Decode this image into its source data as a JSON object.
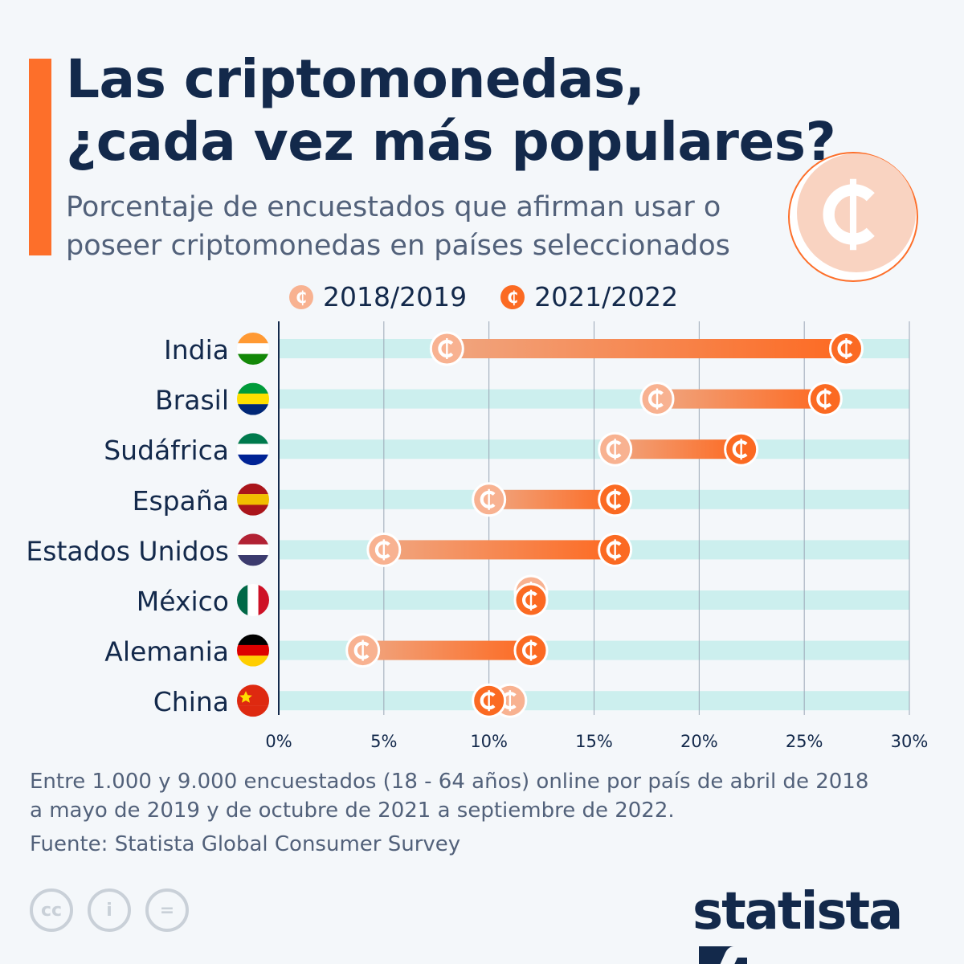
{
  "header": {
    "title_line1": "Las criptomonedas,",
    "title_line2": "¿cada vez más populares?",
    "subtitle_line1": "Porcentaje de encuestados que afirman usar o",
    "subtitle_line2": "poseer criptomonedas en países seleccionados"
  },
  "chart_data": {
    "type": "dumbbell",
    "categories": [
      "India",
      "Brasil",
      "Sudáfrica",
      "España",
      "Estados Unidos",
      "México",
      "Alemania",
      "China"
    ],
    "series": [
      {
        "name": "2018/2019",
        "color": "#f8b291",
        "values": [
          8,
          18,
          16,
          10,
          5,
          12,
          4,
          11
        ]
      },
      {
        "name": "2021/2022",
        "color": "#fb6a22",
        "values": [
          27,
          26,
          22,
          16,
          16,
          12,
          12,
          10
        ]
      }
    ],
    "xlim": [
      0,
      30
    ],
    "xticks": [
      "0%",
      "5%",
      "10%",
      "15%",
      "20%",
      "25%",
      "30%"
    ],
    "grid": true,
    "legend": "top"
  },
  "footer": {
    "note_line1": "Entre 1.000 y 9.000 encuestados (18 - 64 años) online por país de abril de 2018",
    "note_line2": "a mayo de 2019 y de octubre de 2021 a septiembre de 2022.",
    "source": "Fuente: Statista Global Consumer Survey",
    "logo": "statista",
    "coin_symbol": "₵"
  },
  "colors": {
    "accent": "#fd6f2a",
    "navy": "#13294b",
    "band": "#ccefee"
  }
}
